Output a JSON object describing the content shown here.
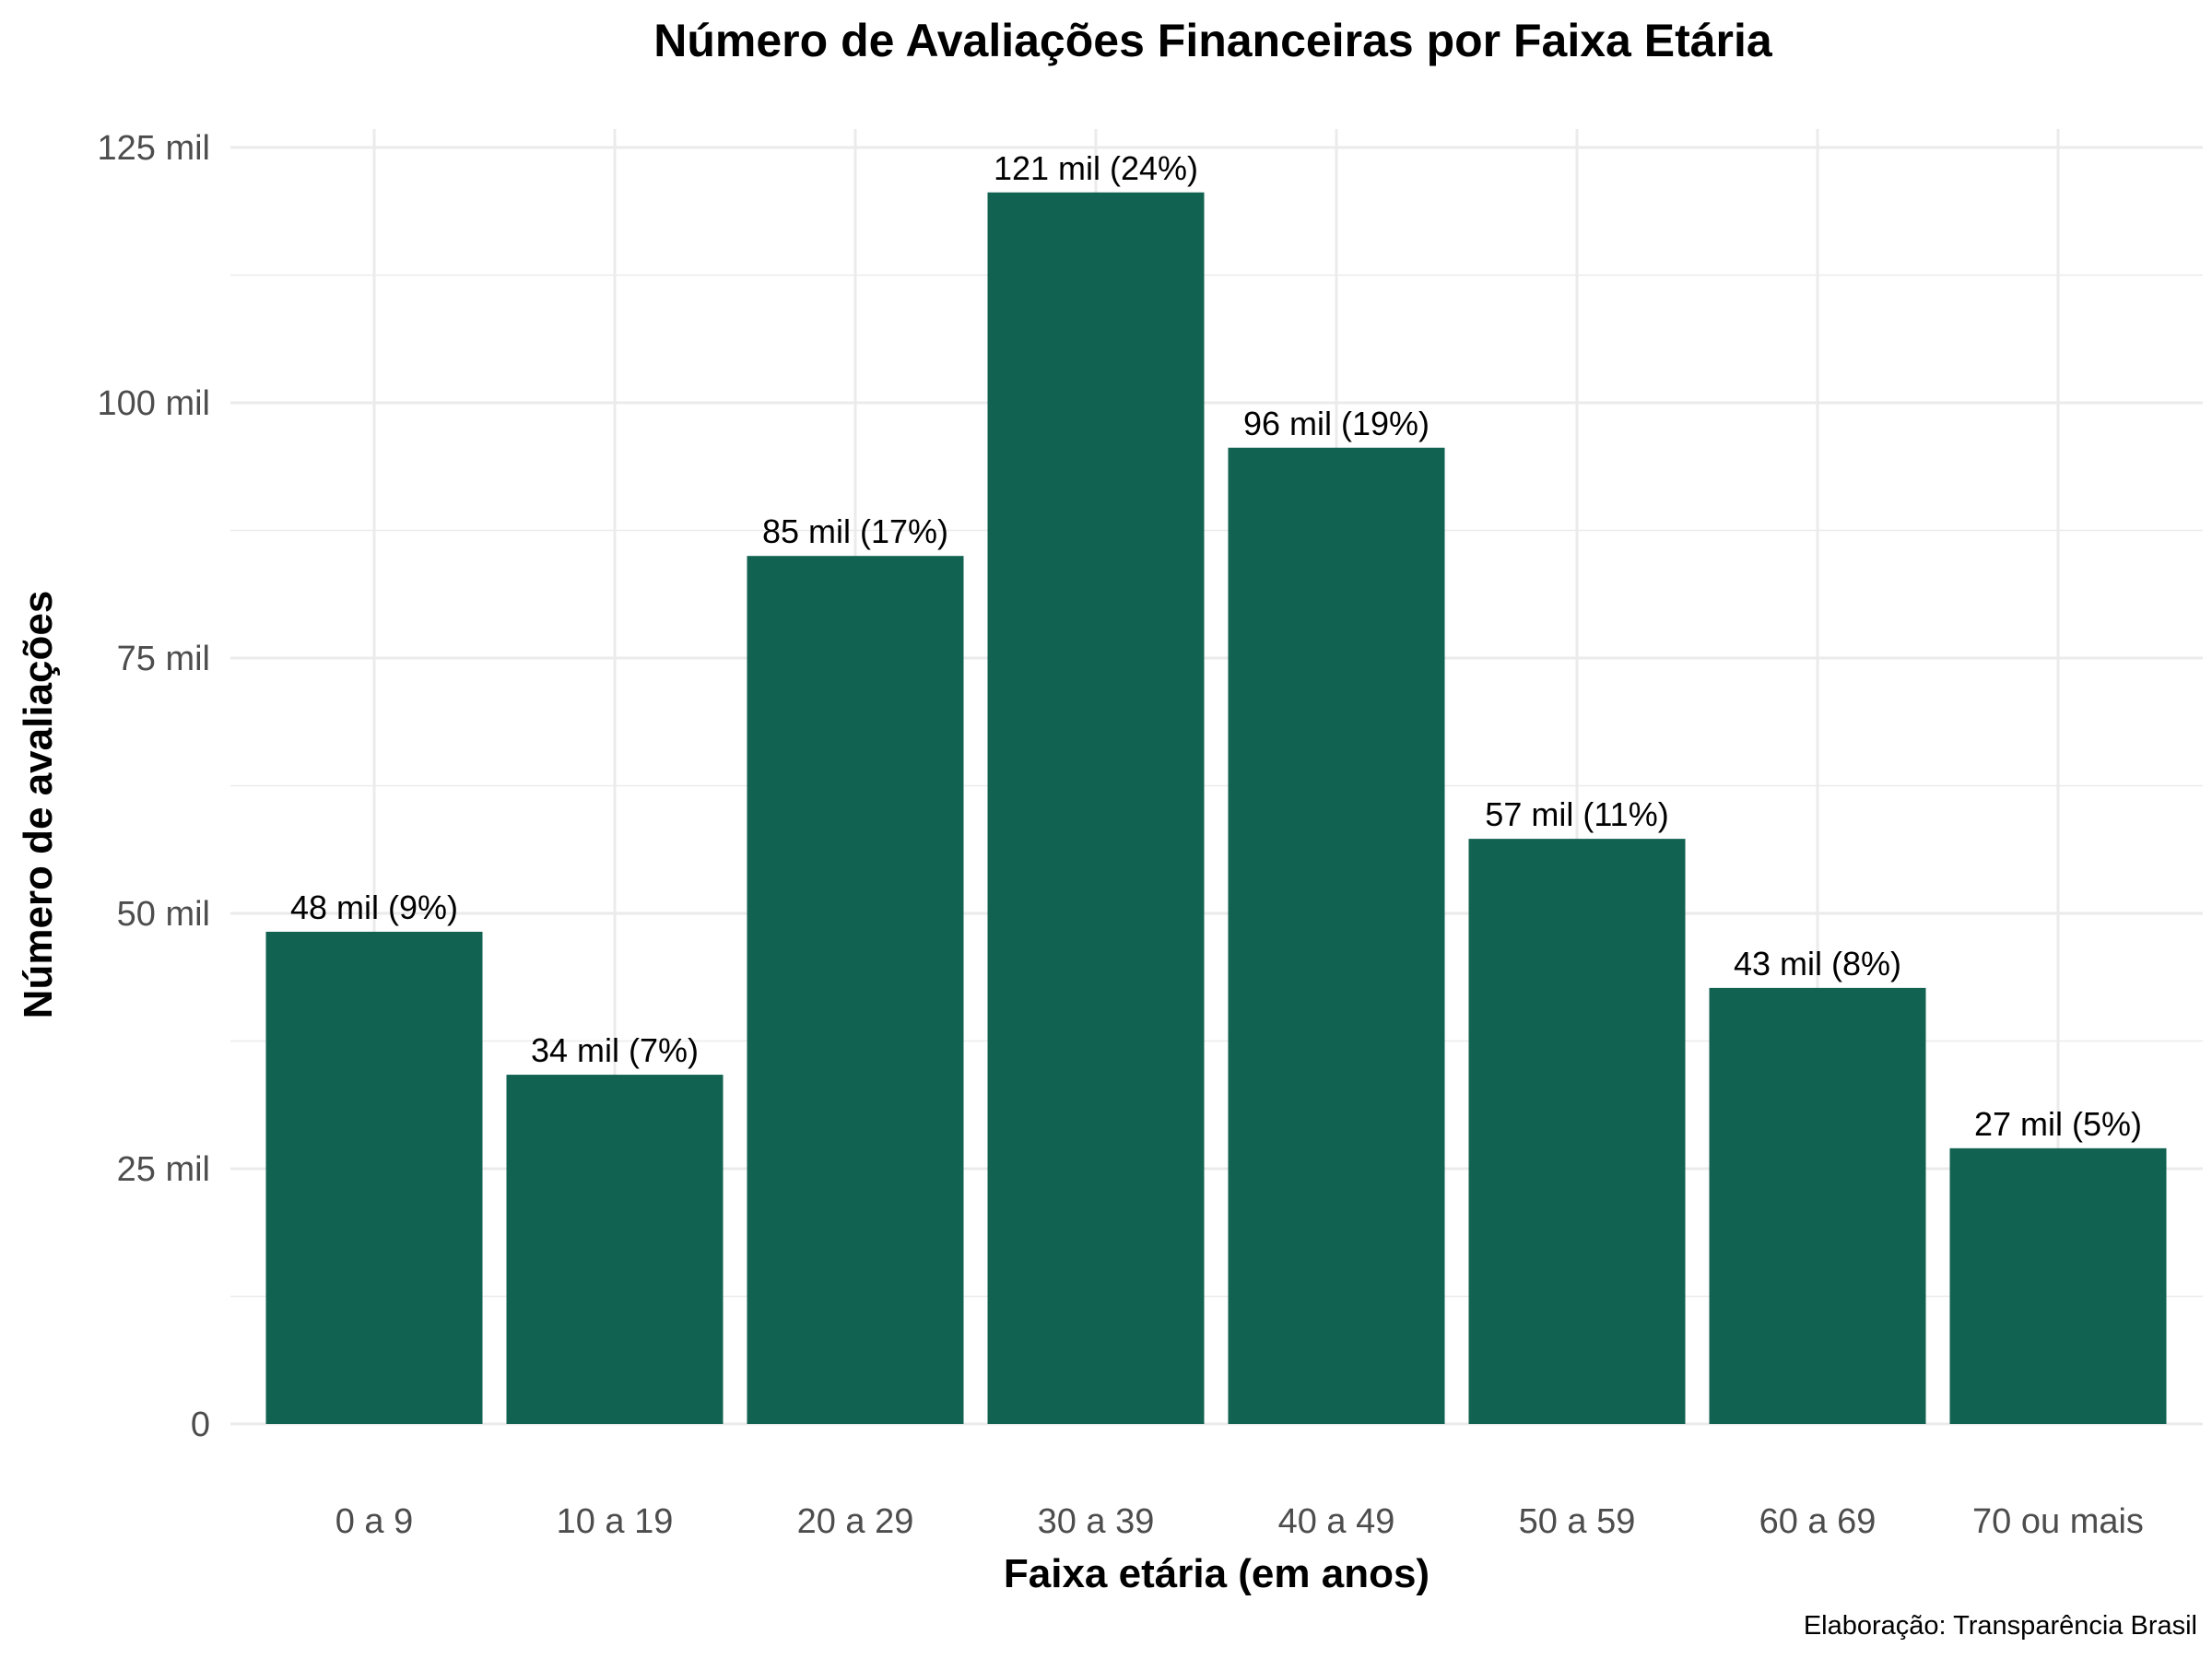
{
  "chart_data": {
    "type": "bar",
    "title": "Número de Avaliações Financeiras por Faixa Etária",
    "xlabel": "Faixa etária (em anos)",
    "ylabel": "Número de avaliações",
    "caption": "Elaboração: Transparência Brasil",
    "categories": [
      "0 a 9",
      "10 a 19",
      "20 a 29",
      "30 a 39",
      "40 a 49",
      "50 a 59",
      "60 a 69",
      "70 ou mais"
    ],
    "values": [
      48200,
      34200,
      85000,
      120600,
      95600,
      57300,
      42700,
      27000
    ],
    "data_labels": [
      "48 mil (9%)",
      "34 mil (7%)",
      "85 mil (17%)",
      "121 mil (24%)",
      "96 mil (19%)",
      "57 mil (11%)",
      "43 mil (8%)",
      "27 mil (5%)"
    ],
    "ylim": [
      0,
      125000
    ],
    "yticks": [
      0,
      25000,
      50000,
      75000,
      100000,
      125000
    ],
    "ytick_labels": [
      "0",
      "25 mil",
      "50 mil",
      "75 mil",
      "100 mil",
      "125 mil"
    ],
    "grid": true,
    "legend": "none",
    "bar_color": "#126252"
  }
}
